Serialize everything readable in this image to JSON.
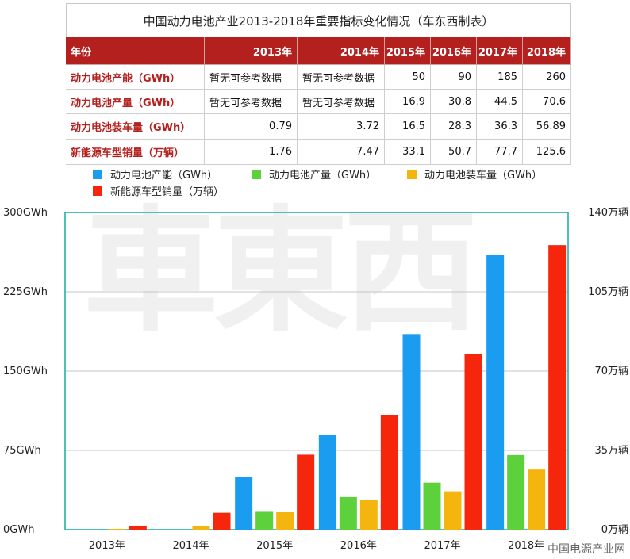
{
  "table": {
    "title": "中国动力电池产业2013-2018年重要指标变化情况（车东西制表）",
    "header": [
      "年份",
      "2013年",
      "2014年",
      "2015年",
      "2016年",
      "2017年",
      "2018年"
    ],
    "rows": [
      {
        "label": "动力电池产能（GWh）",
        "cells": [
          "暂无可参考数据",
          "暂无可参考数据",
          "50",
          "90",
          "185",
          "260"
        ]
      },
      {
        "label": "动力电池产量（GWh）",
        "cells": [
          "暂无可参考数据",
          "暂无可参考数据",
          "16.9",
          "30.8",
          "44.5",
          "70.6"
        ]
      },
      {
        "label": "动力电池装车量（GWh）",
        "cells": [
          "0.79",
          "3.72",
          "16.5",
          "28.3",
          "36.3",
          "56.89"
        ]
      },
      {
        "label": "新能源车型销量（万辆）",
        "cells": [
          "1.76",
          "7.47",
          "33.1",
          "50.7",
          "77.7",
          "125.6"
        ]
      }
    ]
  },
  "legend": [
    {
      "label": "动力电池产能（GWh）",
      "color": "#1a9df0"
    },
    {
      "label": "动力电池产量（GWh）",
      "color": "#5dd13c"
    },
    {
      "label": "动力电池装车量（GWh）",
      "color": "#f5b50f"
    },
    {
      "label": "新能源车型销量（万辆）",
      "color": "#f5260c"
    }
  ],
  "chart_data": {
    "type": "bar",
    "categories": [
      "2013年",
      "2014年",
      "2015年",
      "2016年",
      "2017年",
      "2018年"
    ],
    "series": [
      {
        "name": "动力电池产能（GWh）",
        "axis": "left",
        "color": "#1a9df0",
        "values": [
          null,
          null,
          50,
          90,
          185,
          260
        ]
      },
      {
        "name": "动力电池产量（GWh）",
        "axis": "left",
        "color": "#5dd13c",
        "values": [
          null,
          null,
          16.9,
          30.8,
          44.5,
          70.6
        ]
      },
      {
        "name": "动力电池装车量（GWh）",
        "axis": "left",
        "color": "#f5b50f",
        "values": [
          0.79,
          3.72,
          16.5,
          28.3,
          36.3,
          56.89
        ]
      },
      {
        "name": "新能源车型销量（万辆）",
        "axis": "right",
        "color": "#f5260c",
        "values": [
          1.76,
          7.47,
          33.1,
          50.7,
          77.7,
          125.6
        ]
      }
    ],
    "left_axis": {
      "ylim": [
        0,
        300
      ],
      "ticks": [
        0,
        75,
        150,
        225,
        300
      ],
      "tick_labels": [
        "0GWh",
        "75GWh",
        "150GWh",
        "225GWh",
        "300GWh"
      ]
    },
    "right_axis": {
      "ylim": [
        0,
        140
      ],
      "ticks": [
        0,
        35,
        70,
        105,
        140
      ],
      "tick_labels": [
        "0万辆",
        "35万辆",
        "70万辆",
        "105万辆",
        "140万辆"
      ]
    },
    "grid": true,
    "legend_position": "top-left"
  },
  "watermark": "車東西",
  "footer": "中国电源产业网"
}
